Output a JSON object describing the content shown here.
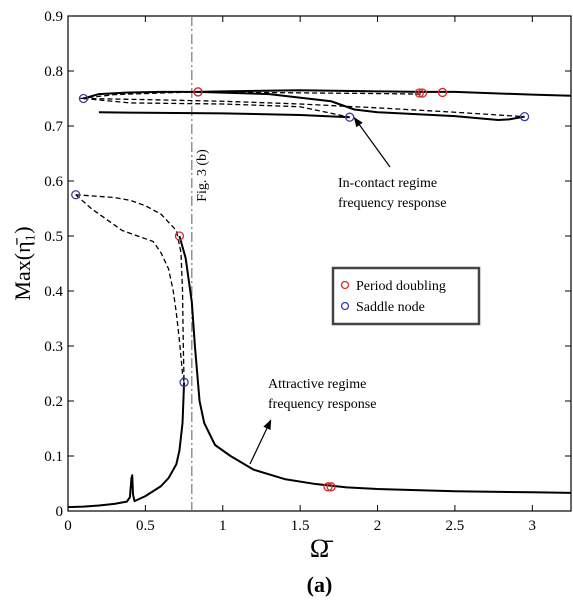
{
  "chart_data": {
    "type": "line",
    "panel_label": "(a)",
    "xlabel": "Ω̄",
    "ylabel": "Max(η̄₁)",
    "xlim": [
      0,
      3.25
    ],
    "ylim": [
      0,
      0.9
    ],
    "x_ticks": [
      0,
      0.5,
      1,
      1.5,
      2,
      2.5,
      3
    ],
    "x_tick_labels": [
      "0",
      "0.5",
      "1",
      "1.5",
      "2",
      "2.5",
      "3"
    ],
    "y_ticks": [
      0,
      0.1,
      0.2,
      0.3,
      0.4,
      0.5,
      0.6,
      0.7,
      0.8,
      0.9
    ],
    "y_tick_labels": [
      "0",
      "0.1",
      "0.2",
      "0.3",
      "0.4",
      "0.5",
      "0.6",
      "0.7",
      "0.8",
      "0.9"
    ],
    "grid": false,
    "legend_position": "right-middle",
    "legend": [
      {
        "label": "Period doubling",
        "color": "#d62a2a"
      },
      {
        "label": "Saddle node",
        "color": "#3a3aa8"
      }
    ],
    "vertical_line": {
      "x": 0.8,
      "label": "Fig. 3 (b)"
    },
    "annotations": [
      {
        "text_lines": [
          "In-contact regime",
          "frequency response"
        ],
        "arrow_target": [
          1.85,
          0.715
        ]
      },
      {
        "text_lines": [
          "Attractive regime",
          "frequency response"
        ],
        "arrow_target": [
          1.31,
          0.165
        ]
      }
    ],
    "series": [
      {
        "style": "solid",
        "values": [
          [
            0,
            0.007
          ],
          [
            0.1,
            0.008
          ],
          [
            0.2,
            0.01
          ],
          [
            0.3,
            0.013
          ],
          [
            0.38,
            0.017
          ],
          [
            0.4,
            0.025
          ],
          [
            0.41,
            0.06
          ],
          [
            0.415,
            0.065
          ],
          [
            0.42,
            0.03
          ],
          [
            0.43,
            0.018
          ],
          [
            0.5,
            0.027
          ],
          [
            0.6,
            0.045
          ],
          [
            0.65,
            0.06
          ],
          [
            0.7,
            0.085
          ],
          [
            0.72,
            0.11
          ],
          [
            0.74,
            0.16
          ],
          [
            0.75,
            0.234
          ]
        ]
      },
      {
        "style": "solid",
        "values": [
          [
            0.72,
            0.5
          ],
          [
            0.76,
            0.46
          ],
          [
            0.8,
            0.38
          ],
          [
            0.82,
            0.3
          ],
          [
            0.85,
            0.2
          ],
          [
            0.88,
            0.16
          ],
          [
            0.95,
            0.12
          ],
          [
            1.05,
            0.1
          ],
          [
            1.2,
            0.075
          ],
          [
            1.4,
            0.058
          ],
          [
            1.6,
            0.049
          ],
          [
            1.8,
            0.043
          ],
          [
            2.0,
            0.04
          ],
          [
            2.5,
            0.036
          ],
          [
            3.0,
            0.034
          ],
          [
            3.25,
            0.033
          ]
        ]
      },
      {
        "style": "dashed",
        "values": [
          [
            0.05,
            0.575
          ],
          [
            0.2,
            0.572
          ],
          [
            0.3,
            0.57
          ],
          [
            0.4,
            0.565
          ],
          [
            0.5,
            0.555
          ],
          [
            0.6,
            0.54
          ],
          [
            0.7,
            0.51
          ],
          [
            0.73,
            0.47
          ],
          [
            0.74,
            0.4
          ],
          [
            0.745,
            0.3
          ],
          [
            0.75,
            0.234
          ]
        ]
      },
      {
        "style": "dashed",
        "values": [
          [
            0.05,
            0.575
          ],
          [
            0.15,
            0.55
          ],
          [
            0.25,
            0.53
          ],
          [
            0.35,
            0.51
          ],
          [
            0.45,
            0.5
          ],
          [
            0.55,
            0.49
          ],
          [
            0.6,
            0.47
          ],
          [
            0.65,
            0.44
          ],
          [
            0.68,
            0.4
          ],
          [
            0.7,
            0.36
          ],
          [
            0.72,
            0.31
          ],
          [
            0.73,
            0.28
          ],
          [
            0.74,
            0.25
          ],
          [
            0.75,
            0.234
          ]
        ]
      },
      {
        "style": "dashed",
        "values": [
          [
            0.72,
            0.5
          ],
          [
            0.73,
            0.49
          ]
        ]
      },
      {
        "style": "solid",
        "values": [
          [
            0.1,
            0.75
          ],
          [
            0.2,
            0.758
          ],
          [
            0.4,
            0.761
          ],
          [
            0.6,
            0.762
          ],
          [
            0.84,
            0.762
          ],
          [
            1.0,
            0.763
          ],
          [
            1.5,
            0.765
          ],
          [
            2.0,
            0.763
          ],
          [
            2.28,
            0.762
          ],
          [
            2.5,
            0.762
          ],
          [
            3.0,
            0.757
          ],
          [
            3.25,
            0.755
          ]
        ]
      },
      {
        "style": "dashed",
        "values": [
          [
            0.08,
            0.75
          ],
          [
            0.3,
            0.757
          ],
          [
            0.6,
            0.76
          ],
          [
            0.84,
            0.762
          ],
          [
            1.2,
            0.761
          ],
          [
            1.6,
            0.76
          ],
          [
            2.0,
            0.759
          ],
          [
            2.28,
            0.758
          ]
        ]
      },
      {
        "style": "solid",
        "values": [
          [
            0.84,
            0.762
          ],
          [
            1.3,
            0.758
          ],
          [
            1.7,
            0.745
          ],
          [
            1.85,
            0.73
          ],
          [
            2.0,
            0.725
          ],
          [
            2.5,
            0.718
          ],
          [
            2.78,
            0.711
          ],
          [
            2.85,
            0.712
          ],
          [
            2.95,
            0.717
          ]
        ]
      },
      {
        "style": "solid",
        "values": [
          [
            0.2,
            0.725
          ],
          [
            0.5,
            0.724
          ],
          [
            1.0,
            0.723
          ],
          [
            1.5,
            0.72
          ],
          [
            1.82,
            0.716
          ]
        ]
      },
      {
        "style": "dashed",
        "values": [
          [
            0.1,
            0.75
          ],
          [
            0.4,
            0.742
          ],
          [
            1.0,
            0.74
          ],
          [
            1.5,
            0.735
          ],
          [
            1.82,
            0.716
          ]
        ]
      },
      {
        "style": "dashed",
        "values": [
          [
            0.1,
            0.75
          ],
          [
            0.5,
            0.748
          ],
          [
            1.0,
            0.745
          ],
          [
            1.5,
            0.74
          ],
          [
            2.0,
            0.733
          ],
          [
            2.5,
            0.725
          ],
          [
            2.95,
            0.717
          ]
        ]
      }
    ],
    "markers": [
      {
        "type": "saddle_node",
        "x": 0.05,
        "y": 0.575
      },
      {
        "type": "saddle_node",
        "x": 0.75,
        "y": 0.234
      },
      {
        "type": "saddle_node",
        "x": 0.1,
        "y": 0.75
      },
      {
        "type": "saddle_node",
        "x": 0.84,
        "y": 0.762
      },
      {
        "type": "saddle_node",
        "x": 1.82,
        "y": 0.716
      },
      {
        "type": "saddle_node",
        "x": 2.95,
        "y": 0.717
      },
      {
        "type": "period_doubling",
        "x": 0.72,
        "y": 0.5
      },
      {
        "type": "period_doubling",
        "x": 1.68,
        "y": 0.044
      },
      {
        "type": "period_doubling",
        "x": 1.7,
        "y": 0.044
      },
      {
        "type": "period_doubling",
        "x": 0.84,
        "y": 0.762
      },
      {
        "type": "period_doubling",
        "x": 2.27,
        "y": 0.76
      },
      {
        "type": "period_doubling",
        "x": 2.29,
        "y": 0.76
      },
      {
        "type": "period_doubling",
        "x": 2.42,
        "y": 0.761
      }
    ]
  }
}
